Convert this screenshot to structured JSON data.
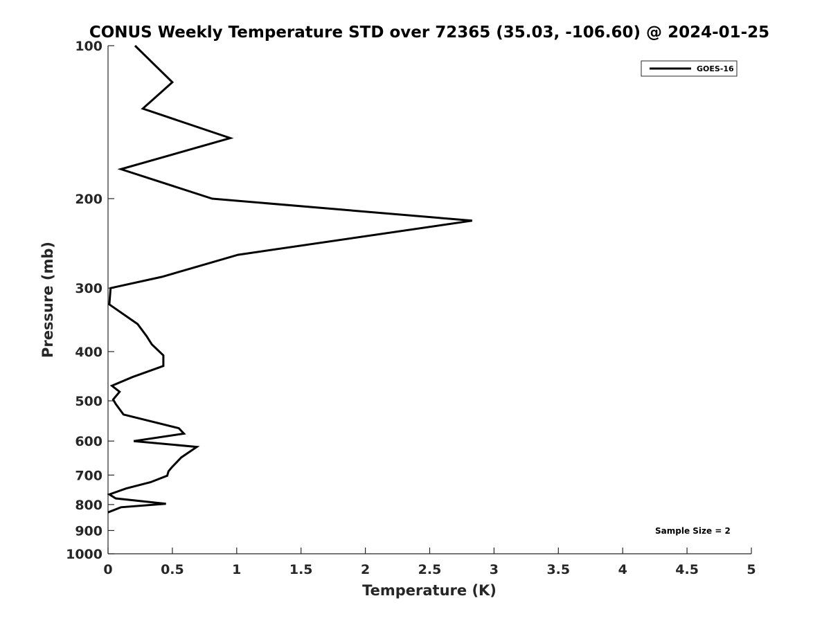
{
  "chart_data": {
    "type": "line",
    "title": "CONUS Weekly Temperature STD over 72365 (35.03, -106.60) @ 2024-01-25",
    "xlabel": "Temperature (K)",
    "ylabel": "Pressure (mb)",
    "xlim": [
      0,
      5
    ],
    "ylim": [
      1000,
      100
    ],
    "y_scale": "log",
    "y_reversed": true,
    "x_ticks": [
      0,
      0.5,
      1,
      1.5,
      2,
      2.5,
      3,
      3.5,
      4,
      4.5,
      5
    ],
    "x_tick_labels": [
      "0",
      "0.5",
      "1",
      "1.5",
      "2",
      "2.5",
      "3",
      "3.5",
      "4",
      "4.5",
      "5"
    ],
    "y_ticks": [
      100,
      200,
      300,
      400,
      500,
      600,
      700,
      800,
      900,
      1000
    ],
    "y_tick_labels": [
      "100",
      "200",
      "300",
      "400",
      "500",
      "600",
      "700",
      "800",
      "900",
      "1000"
    ],
    "grid": false,
    "legend": {
      "placement": "top-right",
      "entries": [
        "GOES-16"
      ]
    },
    "annotations": [
      {
        "text": "Sample Size = 2",
        "placement": "bottom-right"
      }
    ],
    "series": [
      {
        "name": "GOES-16",
        "color": "#000000",
        "x": [
          0.21,
          0.5,
          0.27,
          0.95,
          0.1,
          0.81,
          2.83,
          1.01,
          0.42,
          0.02,
          0.01,
          0.23,
          0.3,
          0.34,
          0.43,
          0.43,
          0.19,
          0.03,
          0.09,
          0.04,
          0.06,
          0.12,
          0.55,
          0.59,
          0.2,
          0.69,
          0.57,
          0.5,
          0.47,
          0.46,
          0.33,
          0.14,
          0.01,
          0.06,
          0.45,
          0.1,
          0.0
        ],
        "y": [
          100,
          118,
          133,
          152,
          175,
          200,
          221,
          258,
          285,
          300,
          323,
          353,
          373,
          387,
          407,
          427,
          449,
          467,
          480,
          497,
          507,
          532,
          566,
          580,
          600,
          616,
          646,
          674,
          688,
          702,
          723,
          744,
          764,
          778,
          797,
          810,
          829
        ]
      }
    ]
  }
}
